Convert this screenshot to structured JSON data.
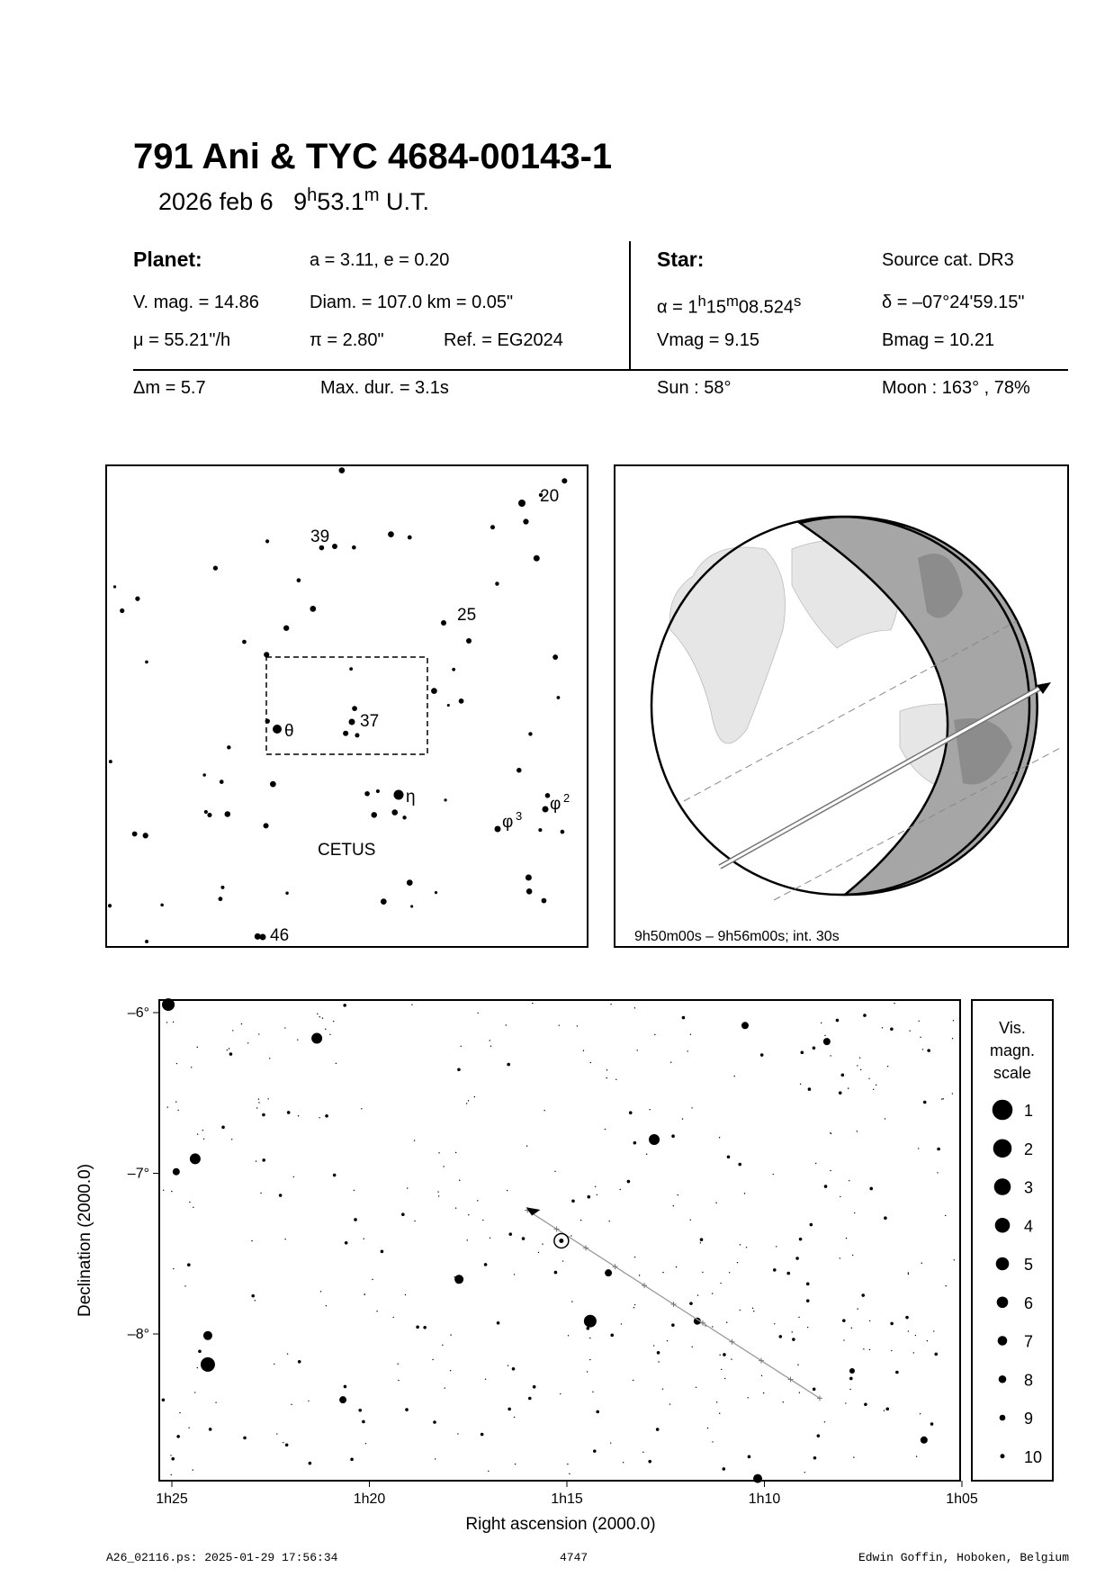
{
  "header": {
    "title": "791 Ani  &  TYC 4684-00143-1",
    "date": "2026 feb  6",
    "time_h": "9",
    "time_m": "53.1",
    "time_unit": "U.T."
  },
  "planet": {
    "label": "Planet:",
    "orbit": "a = 3.11, e = 0.20",
    "vmag": "V. mag. = 14.86",
    "diam": "Diam. = 107.0 km = 0.05\"",
    "mu": "μ =  55.21\"/h",
    "pi": "π =  2.80\"",
    "ref": "Ref. = EG2024"
  },
  "star": {
    "label": "Star:",
    "source": "Source cat.  DR3",
    "alpha_prefix": "α =  1",
    "alpha_h": "h",
    "alpha_m_val": "15",
    "alpha_m": "m",
    "alpha_s_val": "08.524",
    "alpha_s": "s",
    "delta": "δ = –07°24'59.15\"",
    "vmag": "Vmag =  9.15",
    "bmag": "Bmag = 10.21"
  },
  "event": {
    "dm": "Δm = 5.7",
    "maxdur": "Max. dur. = 3.1s",
    "sun": "Sun :  58°",
    "moon": "Moon : 163° , 78%"
  },
  "finder": {
    "labels": {
      "s20": "20",
      "s39": "39",
      "s25": "25",
      "s37": "37",
      "theta": "θ",
      "eta": "η",
      "phi3": "φ",
      "phi3_sup": "3",
      "phi2": "φ",
      "phi2_sup": "2",
      "constellation": "CETUS",
      "s46": "46"
    }
  },
  "globe": {
    "caption": "9h50m00s –  9h56m00s; int. 30s"
  },
  "chart_data": {
    "type": "scatter",
    "xlabel": "Right ascension (2000.0)",
    "ylabel": "Declination (2000.0)",
    "x_ticks": [
      "1h25",
      "1h20",
      "1h15",
      "1h10",
      "1h05"
    ],
    "y_ticks": [
      "-6°",
      "-7°",
      "-8°"
    ],
    "xlim_min": [
      85.3,
      65
    ],
    "ylim_deg": [
      -5.92,
      -8.92
    ],
    "stars": [
      {
        "ra_min": 85.09,
        "dec": -5.95,
        "mag": 4
      },
      {
        "ra_min": 81.33,
        "dec": -6.16,
        "mag": 5
      },
      {
        "ra_min": 84.41,
        "dec": -6.91,
        "mag": 5
      },
      {
        "ra_min": 84.09,
        "dec": -8.19,
        "mag": 3
      },
      {
        "ra_min": 84.09,
        "dec": -8.01,
        "mag": 6
      },
      {
        "ra_min": 72.79,
        "dec": -6.79,
        "mag": 5
      },
      {
        "ra_min": 74.41,
        "dec": -7.92,
        "mag": 4
      },
      {
        "ra_min": 77.73,
        "dec": -7.66,
        "mag": 6
      },
      {
        "ra_min": 73.95,
        "dec": -7.62,
        "mag": 7
      },
      {
        "ra_min": 71.7,
        "dec": -7.92,
        "mag": 7
      },
      {
        "ra_min": 70.49,
        "dec": -6.08,
        "mag": 7
      },
      {
        "ra_min": 70.17,
        "dec": -8.9,
        "mag": 6
      },
      {
        "ra_min": 68.42,
        "dec": -6.18,
        "mag": 7
      },
      {
        "ra_min": 84.89,
        "dec": -6.99,
        "mag": 7
      },
      {
        "ra_min": 80.67,
        "dec": -8.41,
        "mag": 7
      },
      {
        "ra_min": 65.96,
        "dec": -8.66,
        "mag": 7
      },
      {
        "ra_min": 67.78,
        "dec": -8.23,
        "mag": 8
      }
    ],
    "target": {
      "ra_min": 75.14,
      "dec": -7.42
    },
    "path": {
      "start": {
        "ra_min": 68.6,
        "dec": -8.4
      },
      "end": {
        "ra_min": 76.0,
        "dec": -7.23
      }
    },
    "legend": {
      "title": [
        "Vis.",
        "magn.",
        "scale"
      ],
      "mags": [
        "1",
        "2",
        "3",
        "4",
        "5",
        "6",
        "7",
        "8",
        "9",
        "10"
      ]
    }
  },
  "footer": {
    "file": "A26_02116.ps: 2025-01-29 17:56:34",
    "number": "4747",
    "author": "Edwin Goffin, Hoboken, Belgium"
  }
}
